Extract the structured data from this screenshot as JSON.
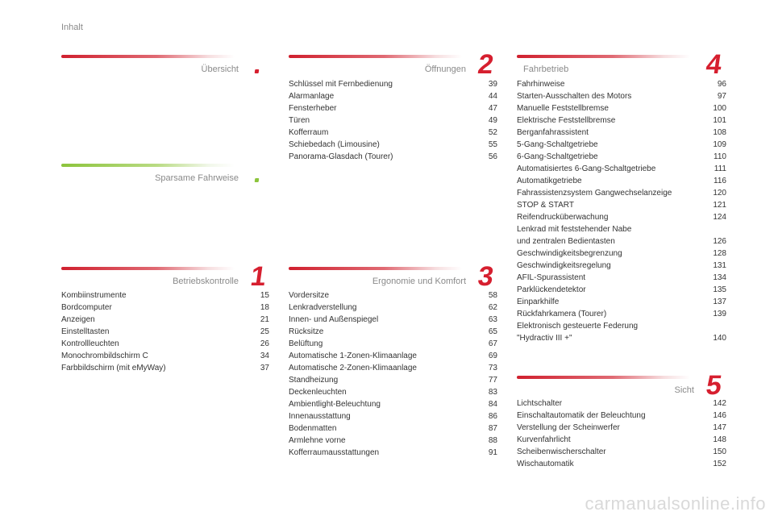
{
  "page_label": "Inhalt",
  "sections": {
    "uebersicht": {
      "title": "Übersicht"
    },
    "sparsame": {
      "title": "Sparsame Fahrweise"
    },
    "betrieb": {
      "title": "Betriebskontrolle",
      "number": "1",
      "items": [
        {
          "label": "Kombiinstrumente",
          "page": "15"
        },
        {
          "label": "Bordcomputer",
          "page": "18"
        },
        {
          "label": "Anzeigen",
          "page": "21"
        },
        {
          "label": "Einstelltasten",
          "page": "25"
        },
        {
          "label": "Kontrollleuchten",
          "page": "26"
        },
        {
          "label": "Monochrombildschirm C",
          "page": "34"
        },
        {
          "label": "Farbbildschirm (mit eMyWay)",
          "page": "37"
        }
      ]
    },
    "oeffnungen": {
      "title": "Öffnungen",
      "number": "2",
      "items": [
        {
          "label": "Schlüssel mit Fernbedienung",
          "page": "39"
        },
        {
          "label": "Alarmanlage",
          "page": "44"
        },
        {
          "label": "Fensterheber",
          "page": "47"
        },
        {
          "label": "Türen",
          "page": "49"
        },
        {
          "label": "Kofferraum",
          "page": "52"
        },
        {
          "label": "Schiebedach (Limousine)",
          "page": "55"
        },
        {
          "label": "Panorama-Glasdach (Tourer)",
          "page": "56"
        }
      ]
    },
    "ergonomie": {
      "title": "Ergonomie und Komfort",
      "number": "3",
      "items": [
        {
          "label": "Vordersitze",
          "page": "58"
        },
        {
          "label": "Lenkradverstellung",
          "page": "62"
        },
        {
          "label": "Innen- und Außenspiegel",
          "page": "63"
        },
        {
          "label": "Rücksitze",
          "page": "65"
        },
        {
          "label": "Belüftung",
          "page": "67"
        },
        {
          "label": "Automatische 1-Zonen-Klimaanlage",
          "page": "69"
        },
        {
          "label": "Automatische 2-Zonen-Klimaanlage",
          "page": "73"
        },
        {
          "label": "Standheizung",
          "page": "77"
        },
        {
          "label": "Deckenleuchten",
          "page": "83"
        },
        {
          "label": "Ambientlight-Beleuchtung",
          "page": "84"
        },
        {
          "label": "Innenausstattung",
          "page": "86"
        },
        {
          "label": "Bodenmatten",
          "page": "87"
        },
        {
          "label": "Armlehne vorne",
          "page": "88"
        },
        {
          "label": "Kofferraumausstattungen",
          "page": "91"
        }
      ]
    },
    "fahrbetrieb": {
      "title": "Fahrbetrieb",
      "number": "4",
      "items": [
        {
          "label": "Fahrhinweise",
          "page": "96"
        },
        {
          "label": "Starten-Ausschalten des Motors",
          "page": "97"
        },
        {
          "label": "Manuelle Feststellbremse",
          "page": "100"
        },
        {
          "label": "Elektrische Feststellbremse",
          "page": "101"
        },
        {
          "label": "Berganfahrassistent",
          "page": "108"
        },
        {
          "label": "5-Gang-Schaltgetriebe",
          "page": "109"
        },
        {
          "label": "6-Gang-Schaltgetriebe",
          "page": "110"
        },
        {
          "label": "Automatisiertes 6-Gang-Schaltgetriebe",
          "page": "111"
        },
        {
          "label": "Automatikgetriebe",
          "page": "116"
        },
        {
          "label": "Fahrassistenzsystem Gangwechselanzeige",
          "page": "120"
        },
        {
          "label": "STOP & START",
          "page": "121"
        },
        {
          "label": "Reifendrucküberwachung",
          "page": "124"
        },
        {
          "label": "Lenkrad mit feststehender Nabe\nund zentralen Bedientasten",
          "page": "126"
        },
        {
          "label": "Geschwindigkeitsbegrenzung",
          "page": "128"
        },
        {
          "label": "Geschwindigkeitsregelung",
          "page": "131"
        },
        {
          "label": "AFIL-Spurassistent",
          "page": "134"
        },
        {
          "label": "Parklückendetektor",
          "page": "135"
        },
        {
          "label": "Einparkhilfe",
          "page": "137"
        },
        {
          "label": "Rückfahrkamera (Tourer)",
          "page": "139"
        },
        {
          "label": "Elektronisch gesteuerte Federung\n\"Hydractiv III +\"",
          "page": "140"
        }
      ]
    },
    "sicht": {
      "title": "Sicht",
      "number": "5",
      "items": [
        {
          "label": "Lichtschalter",
          "page": "142"
        },
        {
          "label": "Einschaltautomatik der Beleuchtung",
          "page": "146"
        },
        {
          "label": "Verstellung der Scheinwerfer",
          "page": "147"
        },
        {
          "label": "Kurvenfahrlicht",
          "page": "148"
        },
        {
          "label": "Scheibenwischerschalter",
          "page": "150"
        },
        {
          "label": "Wischautomatik",
          "page": "152"
        }
      ]
    }
  },
  "footer": "carmanualsonline.info",
  "colors": {
    "accent_red": "#d61f2f",
    "accent_green": "#8cc43c",
    "text": "#333333",
    "muted": "#8a8a8a"
  }
}
